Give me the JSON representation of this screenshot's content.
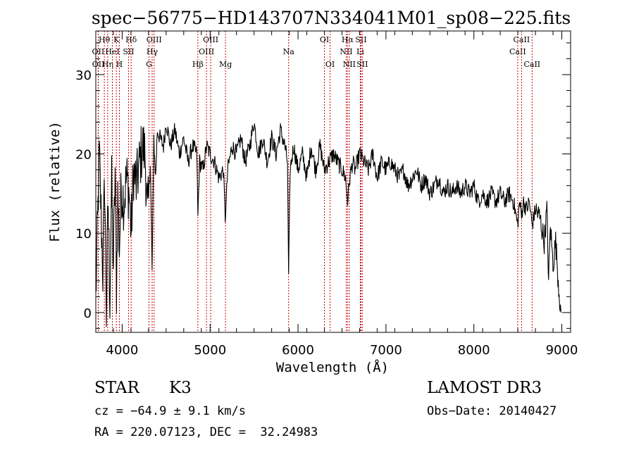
{
  "chart_data": {
    "type": "line",
    "title": "spec−56775−HD143707N334041M01_sp08−225.fits",
    "xlabel": "Wavelength (Å)",
    "ylabel": "Flux (relative)",
    "xlim": [
      3700,
      9100
    ],
    "ylim": [
      -2.5,
      35.5
    ],
    "xticks": [
      4000,
      5000,
      6000,
      7000,
      8000,
      9000
    ],
    "yticks": [
      0,
      10,
      20,
      30
    ],
    "grid": false,
    "series": [
      {
        "name": "spectrum",
        "x": [
          3700,
          3740,
          3780,
          3800,
          3820,
          3840,
          3860,
          3880,
          3900,
          3920,
          3935,
          3950,
          3968,
          3990,
          4020,
          4050,
          4080,
          4102,
          4130,
          4160,
          4200,
          4230,
          4260,
          4290,
          4320,
          4340,
          4360,
          4380,
          4400,
          4430,
          4470,
          4500,
          4550,
          4600,
          4650,
          4700,
          4750,
          4800,
          4850,
          4861,
          4880,
          4920,
          4960,
          5000,
          5050,
          5100,
          5150,
          5172,
          5183,
          5200,
          5250,
          5300,
          5350,
          5400,
          5450,
          5500,
          5550,
          5600,
          5650,
          5700,
          5750,
          5800,
          5850,
          5880,
          5893,
          5910,
          5950,
          6000,
          6050,
          6100,
          6150,
          6200,
          6250,
          6300,
          6350,
          6400,
          6450,
          6500,
          6540,
          6563,
          6590,
          6620,
          6650,
          6700,
          6750,
          6800,
          6850,
          6900,
          6950,
          7000,
          7050,
          7100,
          7150,
          7200,
          7250,
          7300,
          7350,
          7400,
          7450,
          7500,
          7550,
          7600,
          7650,
          7700,
          7750,
          7800,
          7850,
          7900,
          7950,
          8000,
          8050,
          8100,
          8150,
          8200,
          8250,
          8300,
          8350,
          8400,
          8450,
          8498,
          8520,
          8542,
          8560,
          8600,
          8630,
          8662,
          8700,
          8750,
          8800,
          8830,
          8850,
          8870,
          8900,
          8930,
          8960,
          8990
        ],
        "values": [
          2,
          20,
          5,
          17,
          0,
          14,
          2,
          16,
          6,
          18,
          3,
          15,
          8,
          16,
          14,
          17,
          15,
          10,
          18,
          16,
          19,
          21,
          20,
          12,
          19,
          5,
          22,
          17,
          23,
          22,
          21,
          24,
          21,
          23,
          20,
          22,
          19,
          21,
          20,
          12,
          19,
          18,
          21,
          20,
          19,
          17,
          18,
          12,
          14,
          18,
          21,
          20,
          22,
          19,
          21,
          24,
          20,
          22,
          19,
          22,
          20,
          23,
          21,
          19,
          4,
          18,
          21,
          18,
          20,
          17,
          21,
          18,
          21,
          18,
          19,
          20,
          19,
          18,
          17,
          14,
          17,
          19,
          18,
          20,
          19,
          18,
          20,
          17,
          19,
          18,
          19,
          18,
          17,
          18,
          16,
          17,
          18,
          16,
          17,
          15,
          16,
          17,
          15,
          16,
          15,
          16,
          15,
          16,
          15,
          16,
          14,
          15,
          14,
          15,
          14,
          15,
          14,
          15,
          14,
          11,
          14,
          12,
          14,
          13,
          14,
          11,
          13,
          12,
          9,
          13,
          4,
          11,
          6,
          9,
          4,
          0
        ]
      }
    ],
    "spectral_lines": [
      {
        "label": "OII",
        "wavelength": 3727,
        "row": 2
      },
      {
        "label": "OII",
        "wavelength": 3729,
        "row": 3
      },
      {
        "label": "Hθ",
        "wavelength": 3797,
        "row": 1
      },
      {
        "label": "Hη",
        "wavelength": 3835,
        "row": 3
      },
      {
        "label": "HeI",
        "wavelength": 3889,
        "row": 2
      },
      {
        "label": "K",
        "wavelength": 3934,
        "row": 1
      },
      {
        "label": "H",
        "wavelength": 3968,
        "row": 3
      },
      {
        "label": "SII",
        "wavelength": 4072,
        "row": 2
      },
      {
        "label": "Hδ",
        "wavelength": 4102,
        "row": 1
      },
      {
        "label": "G",
        "wavelength": 4305,
        "row": 3
      },
      {
        "label": "Hγ",
        "wavelength": 4341,
        "row": 2
      },
      {
        "label": "OIII",
        "wavelength": 4363,
        "row": 1
      },
      {
        "label": "Hβ",
        "wavelength": 4861,
        "row": 3
      },
      {
        "label": "OIII",
        "wavelength": 4959,
        "row": 2
      },
      {
        "label": "OIII",
        "wavelength": 5007,
        "row": 1
      },
      {
        "label": "Mg",
        "wavelength": 5175,
        "row": 3
      },
      {
        "label": "Na",
        "wavelength": 5893,
        "row": 2
      },
      {
        "label": "OI",
        "wavelength": 6300,
        "row": 1
      },
      {
        "label": "OI",
        "wavelength": 6364,
        "row": 3
      },
      {
        "label": "NII",
        "wavelength": 6548,
        "row": 2
      },
      {
        "label": "Hα",
        "wavelength": 6563,
        "row": 1
      },
      {
        "label": "NII",
        "wavelength": 6583,
        "row": 3
      },
      {
        "label": "Li",
        "wavelength": 6708,
        "row": 2
      },
      {
        "label": "SII",
        "wavelength": 6716,
        "row": 1
      },
      {
        "label": "SII",
        "wavelength": 6731,
        "row": 3
      },
      {
        "label": "CaII",
        "wavelength": 8498,
        "row": 2
      },
      {
        "label": "CaII",
        "wavelength": 8542,
        "row": 1
      },
      {
        "label": "CaII",
        "wavelength": 8662,
        "row": 3
      }
    ]
  },
  "info": {
    "class_label": "STAR",
    "subclass": "K3",
    "survey": "LAMOST DR3",
    "cz": "cz = −64.9 ± 9.1 km/s",
    "obs_date": "Obs−Date: 20140427",
    "coords": "RA = 220.07123, DEC =  32.24983"
  }
}
